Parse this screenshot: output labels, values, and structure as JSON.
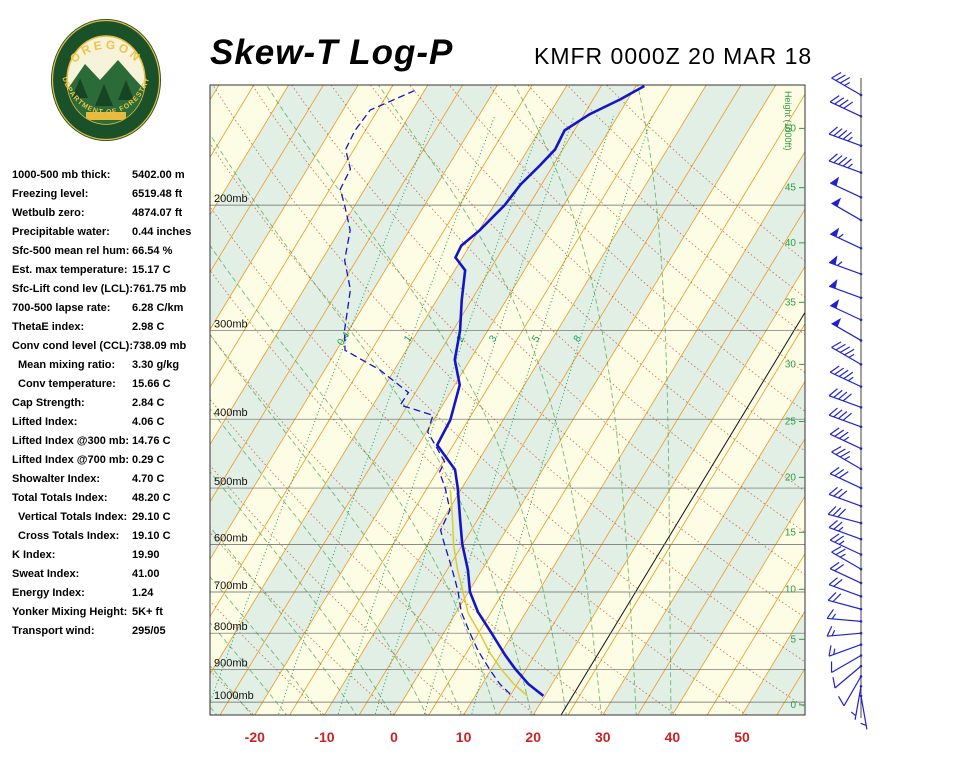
{
  "header": {
    "title": "Skew-T Log-P",
    "station_line": "KMFR 0000Z 20 MAR 18"
  },
  "logo": {
    "top_text": "OREGON",
    "bottom_text": "DEPARTMENT OF FORESTRY"
  },
  "indices": [
    {
      "label": "1000-500 mb thick:",
      "value": "5402.00 m"
    },
    {
      "label": "Freezing level:",
      "value": "6519.48 ft"
    },
    {
      "label": "Wetbulb zero:",
      "value": "4874.07 ft"
    },
    {
      "label": "Precipitable water:",
      "value": "0.44 inches"
    },
    {
      "label": "Sfc-500 mean rel hum:",
      "value": "66.54 %"
    },
    {
      "label": "Est. max temperature:",
      "value": "15.17 C"
    },
    {
      "label": "Sfc-Lift cond lev (LCL):",
      "value": "761.75 mb"
    },
    {
      "label": "700-500 lapse rate:",
      "value": "6.28 C/km"
    },
    {
      "label": "ThetaE index:",
      "value": "2.98 C"
    },
    {
      "label": "Conv cond level (CCL):",
      "value": "738.09 mb"
    },
    {
      "label": "Mean mixing ratio:",
      "value": "3.30 g/kg",
      "indent": true
    },
    {
      "label": "Conv temperature:",
      "value": "15.66 C",
      "indent": true
    },
    {
      "label": "Cap Strength:",
      "value": "2.84 C"
    },
    {
      "label": "Lifted Index:",
      "value": "4.06 C"
    },
    {
      "label": "Lifted Index @300 mb:",
      "value": "14.76 C"
    },
    {
      "label": "Lifted Index @700 mb:",
      "value": "0.29 C"
    },
    {
      "label": "Showalter Index:",
      "value": "4.70 C"
    },
    {
      "label": "Total Totals Index:",
      "value": "48.20 C"
    },
    {
      "label": "Vertical Totals Index:",
      "value": "29.10 C",
      "indent": true
    },
    {
      "label": "Cross Totals Index:",
      "value": "19.10 C",
      "indent": true
    },
    {
      "label": "K Index:",
      "value": "19.90"
    },
    {
      "label": "Sweat Index:",
      "value": "41.00"
    },
    {
      "label": "Energy Index:",
      "value": "1.24"
    },
    {
      "label": "Yonker Mixing Height:",
      "value": "5K+ ft"
    },
    {
      "label": "Transport wind:",
      "value": "295/05"
    }
  ],
  "chart_data": {
    "type": "line",
    "title": "Skew-T Log-P sounding",
    "station": "KMFR",
    "valid": "0000Z 20 MAR 18",
    "pressure_levels": [
      200,
      300,
      400,
      500,
      600,
      700,
      800,
      900,
      1000
    ],
    "pressure_unit": "mb",
    "temp_ticks": [
      -20,
      -10,
      0,
      10,
      20,
      30,
      40,
      50
    ],
    "temp_unit": "C",
    "mixing_ratios": [
      0.4,
      1,
      2,
      3,
      5,
      8
    ],
    "height_scale": {
      "label": "Height (1000ft)",
      "ticks": [
        {
          "label": "50",
          "pressure": 156
        },
        {
          "label": "45",
          "pressure": 189
        },
        {
          "label": "40",
          "pressure": 226
        },
        {
          "label": "35",
          "pressure": 274
        },
        {
          "label": "30",
          "pressure": 335
        },
        {
          "label": "25",
          "pressure": 403
        },
        {
          "label": "20",
          "pressure": 483
        },
        {
          "label": "15",
          "pressure": 577
        },
        {
          "label": "10",
          "pressure": 694
        },
        {
          "label": "5",
          "pressure": 816
        },
        {
          "label": "0",
          "pressure": 1009
        }
      ]
    },
    "black_line_temp": 24,
    "temperature_profile": [
      [
        136,
        -18.8
      ],
      [
        142,
        -21.1
      ],
      [
        149,
        -24.2
      ],
      [
        157,
        -26.4
      ],
      [
        167,
        -26.1
      ],
      [
        176,
        -26.9
      ],
      [
        187,
        -28.0
      ],
      [
        200,
        -28.5
      ],
      [
        217,
        -29.9
      ],
      [
        228,
        -31.2
      ],
      [
        237,
        -31.0
      ],
      [
        247,
        -28.5
      ],
      [
        272,
        -26.4
      ],
      [
        300,
        -24.0
      ],
      [
        330,
        -22.2
      ],
      [
        358,
        -19.3
      ],
      [
        401,
        -17.6
      ],
      [
        435,
        -17.3
      ],
      [
        471,
        -12.6
      ],
      [
        500,
        -10.6
      ],
      [
        554,
        -7.5
      ],
      [
        599,
        -5.1
      ],
      [
        652,
        -2.0
      ],
      [
        700,
        0.2
      ],
      [
        747,
        3.1
      ],
      [
        800,
        6.9
      ],
      [
        858,
        10.7
      ],
      [
        898,
        13.4
      ],
      [
        943,
        16.6
      ],
      [
        980,
        19.8
      ]
    ],
    "dewpoint_profile": [
      [
        138,
        -51.4
      ],
      [
        147,
        -56.1
      ],
      [
        157,
        -56.5
      ],
      [
        167,
        -56.2
      ],
      [
        178,
        -53.8
      ],
      [
        190,
        -53.5
      ],
      [
        200,
        -51.5
      ],
      [
        217,
        -48.5
      ],
      [
        239,
        -46.7
      ],
      [
        263,
        -43.3
      ],
      [
        300,
        -40.6
      ],
      [
        320,
        -38.8
      ],
      [
        341,
        -32.1
      ],
      [
        367,
        -26.0
      ],
      [
        382,
        -26.1
      ],
      [
        395,
        -20.5
      ],
      [
        417,
        -19.8
      ],
      [
        439,
        -17.1
      ],
      [
        459,
        -14.8
      ],
      [
        475,
        -14.6
      ],
      [
        500,
        -12.4
      ],
      [
        537,
        -9.8
      ],
      [
        573,
        -9.4
      ],
      [
        600,
        -7.6
      ],
      [
        635,
        -5.3
      ],
      [
        673,
        -3.0
      ],
      [
        700,
        -1.5
      ],
      [
        747,
        0.7
      ],
      [
        800,
        3.8
      ],
      [
        847,
        6.5
      ],
      [
        900,
        9.8
      ],
      [
        943,
        12.5
      ],
      [
        980,
        15.3
      ]
    ],
    "wetbulb_profile": [
      [
        503,
        -11.5
      ],
      [
        550,
        -8.8
      ],
      [
        600,
        -6.3
      ],
      [
        650,
        -3.6
      ],
      [
        700,
        -0.8
      ],
      [
        750,
        1.8
      ],
      [
        800,
        5.2
      ],
      [
        850,
        8.2
      ],
      [
        900,
        11.5
      ],
      [
        943,
        14.5
      ],
      [
        980,
        17.5
      ]
    ],
    "winds": [
      {
        "p": 980,
        "dir": 170,
        "spd": 5
      },
      {
        "p": 950,
        "dir": 190,
        "spd": 5
      },
      {
        "p": 920,
        "dir": 210,
        "spd": 10
      },
      {
        "p": 890,
        "dir": 230,
        "spd": 10
      },
      {
        "p": 860,
        "dir": 240,
        "spd": 10
      },
      {
        "p": 830,
        "dir": 250,
        "spd": 15
      },
      {
        "p": 800,
        "dir": 265,
        "spd": 15
      },
      {
        "p": 770,
        "dir": 275,
        "spd": 15
      },
      {
        "p": 740,
        "dir": 285,
        "spd": 20
      },
      {
        "p": 710,
        "dir": 290,
        "spd": 20
      },
      {
        "p": 680,
        "dir": 295,
        "spd": 20
      },
      {
        "p": 650,
        "dir": 300,
        "spd": 25
      },
      {
        "p": 620,
        "dir": 295,
        "spd": 25
      },
      {
        "p": 590,
        "dir": 290,
        "spd": 25
      },
      {
        "p": 560,
        "dir": 285,
        "spd": 30
      },
      {
        "p": 530,
        "dir": 290,
        "spd": 30
      },
      {
        "p": 500,
        "dir": 295,
        "spd": 30
      },
      {
        "p": 470,
        "dir": 300,
        "spd": 35
      },
      {
        "p": 440,
        "dir": 295,
        "spd": 35
      },
      {
        "p": 410,
        "dir": 290,
        "spd": 40
      },
      {
        "p": 385,
        "dir": 290,
        "spd": 40
      },
      {
        "p": 360,
        "dir": 295,
        "spd": 45
      },
      {
        "p": 335,
        "dir": 300,
        "spd": 45
      },
      {
        "p": 310,
        "dir": 300,
        "spd": 50
      },
      {
        "p": 290,
        "dir": 295,
        "spd": 50
      },
      {
        "p": 270,
        "dir": 290,
        "spd": 50
      },
      {
        "p": 250,
        "dir": 290,
        "spd": 55
      },
      {
        "p": 230,
        "dir": 295,
        "spd": 55
      },
      {
        "p": 210,
        "dir": 300,
        "spd": 50
      },
      {
        "p": 195,
        "dir": 295,
        "spd": 50
      },
      {
        "p": 180,
        "dir": 290,
        "spd": 45
      },
      {
        "p": 165,
        "dir": 290,
        "spd": 45
      },
      {
        "p": 150,
        "dir": 295,
        "spd": 40
      },
      {
        "p": 140,
        "dir": 300,
        "spd": 35
      }
    ],
    "colors": {
      "band_cream": "#fdfce4",
      "band_green": "#e2efe5",
      "isotherm": "#e89a28",
      "dry_adiabat": "#cc4a28",
      "moist_adiabat": "#3fa045",
      "mixing": "#18a060",
      "sounding": "#1414c8",
      "wetbulb": "#ddc83e",
      "wind": "#2222cc",
      "temp_axis": "#cc2222",
      "height": "#2f9e44",
      "pressure_line": "#666666",
      "black_line": "#111111"
    }
  }
}
